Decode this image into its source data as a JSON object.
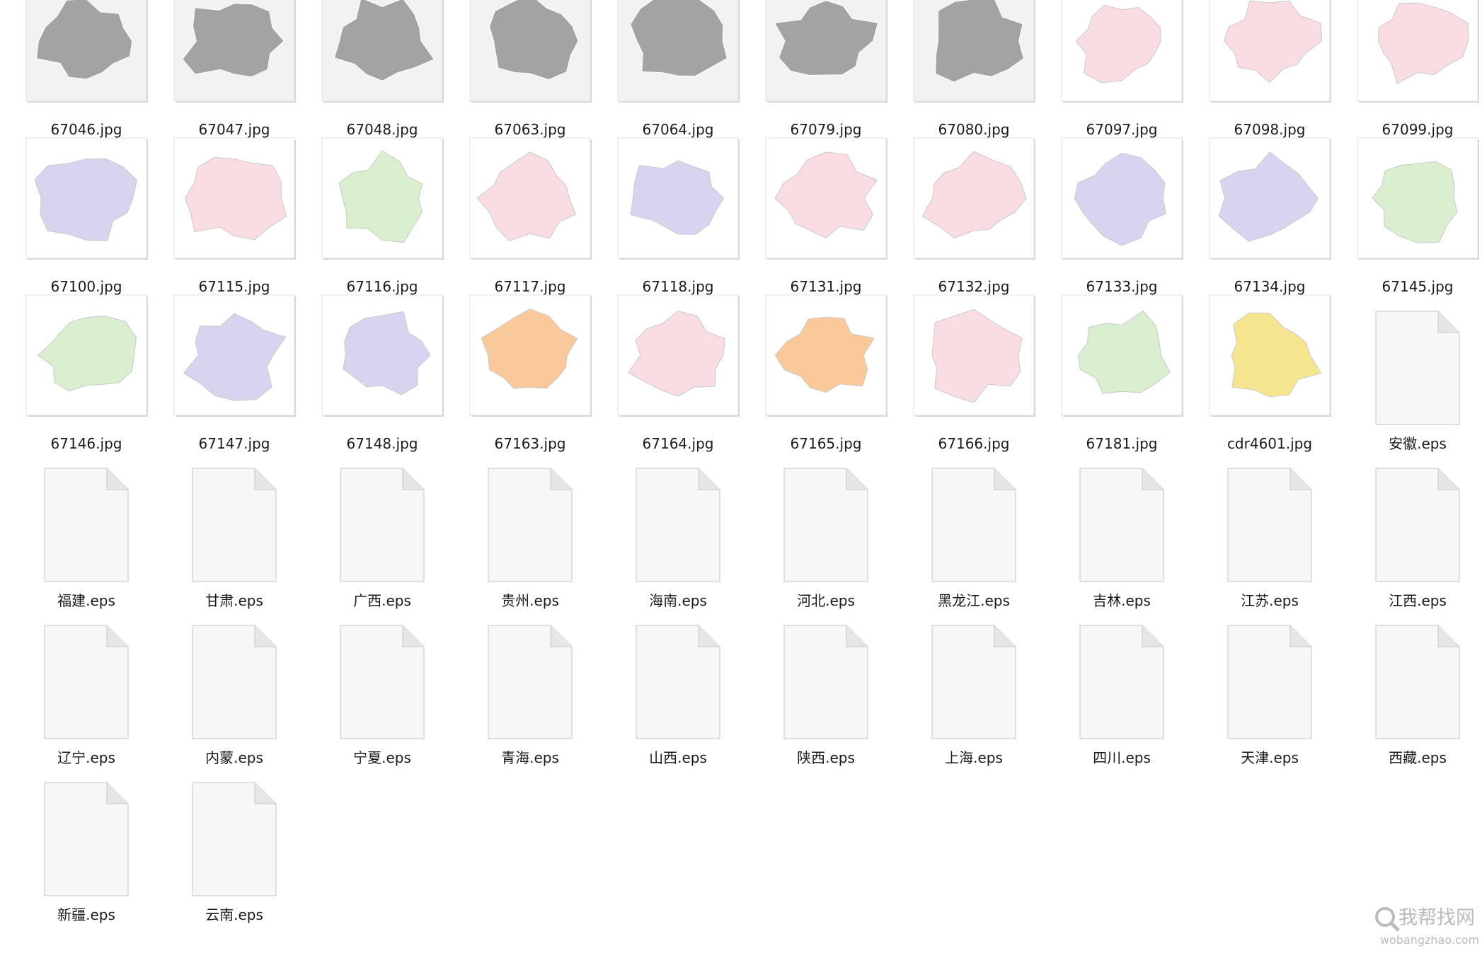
{
  "files": [
    {
      "name": "67046.jpg",
      "color": "#a3a3a3"
    },
    {
      "name": "67047.jpg",
      "color": "#a3a3a3"
    },
    {
      "name": "67048.jpg",
      "color": "#a3a3a3"
    },
    {
      "name": "67063.jpg",
      "color": "#a3a3a3"
    },
    {
      "name": "67064.jpg",
      "color": "#a3a3a3"
    },
    {
      "name": "67079.jpg",
      "color": "#a3a3a3"
    },
    {
      "name": "67080.jpg",
      "color": "#a3a3a3"
    },
    {
      "name": "67097.jpg",
      "color": "#f9dde3"
    },
    {
      "name": "67098.jpg",
      "color": "#f9dde3"
    },
    {
      "name": "67099.jpg",
      "color": "#f9dde3"
    },
    {
      "name": "67100.jpg",
      "color": "#dad3ef"
    },
    {
      "name": "67115.jpg",
      "color": "#f9dde3"
    },
    {
      "name": "67116.jpg",
      "color": "#d9efcf"
    },
    {
      "name": "67117.jpg",
      "color": "#f9dde3"
    },
    {
      "name": "67118.jpg",
      "color": "#dad3ef"
    },
    {
      "name": "67131.jpg",
      "color": "#f9dde3"
    },
    {
      "name": "67132.jpg",
      "color": "#f9dde3"
    },
    {
      "name": "67133.jpg",
      "color": "#dad3ef"
    },
    {
      "name": "67134.jpg",
      "color": "#dad3ef"
    },
    {
      "name": "67145.jpg",
      "color": "#d9efcf"
    },
    {
      "name": "67146.jpg",
      "color": "#d9efcf"
    },
    {
      "name": "67147.jpg",
      "color": "#dad3ef"
    },
    {
      "name": "67148.jpg",
      "color": "#dad3ef"
    },
    {
      "name": "67163.jpg",
      "color": "#f9c99a"
    },
    {
      "name": "67164.jpg",
      "color": "#f9dde3"
    },
    {
      "name": "67165.jpg",
      "color": "#f9c99a"
    },
    {
      "name": "67166.jpg",
      "color": "#f9dde3"
    },
    {
      "name": "67181.jpg",
      "color": "#d9efcf"
    },
    {
      "name": "cdr4601.jpg",
      "color": "#f5e58f"
    },
    {
      "name": "安徽.eps"
    },
    {
      "name": "福建.eps"
    },
    {
      "name": "甘肃.eps"
    },
    {
      "name": "广西.eps"
    },
    {
      "name": "贵州.eps"
    },
    {
      "name": "海南.eps"
    },
    {
      "name": "河北.eps"
    },
    {
      "name": "黑龙江.eps"
    },
    {
      "name": "吉林.eps"
    },
    {
      "name": "江苏.eps"
    },
    {
      "name": "江西.eps"
    },
    {
      "name": "辽宁.eps"
    },
    {
      "name": "内蒙.eps"
    },
    {
      "name": "宁夏.eps"
    },
    {
      "name": "青海.eps"
    },
    {
      "name": "山西.eps"
    },
    {
      "name": "陕西.eps"
    },
    {
      "name": "上海.eps"
    },
    {
      "name": "四川.eps"
    },
    {
      "name": "天津.eps"
    },
    {
      "name": "西藏.eps"
    },
    {
      "name": "新疆.eps"
    },
    {
      "name": "云南.eps"
    }
  ],
  "watermark": {
    "title": "我帮找网",
    "url": "wobangzhao.com"
  }
}
